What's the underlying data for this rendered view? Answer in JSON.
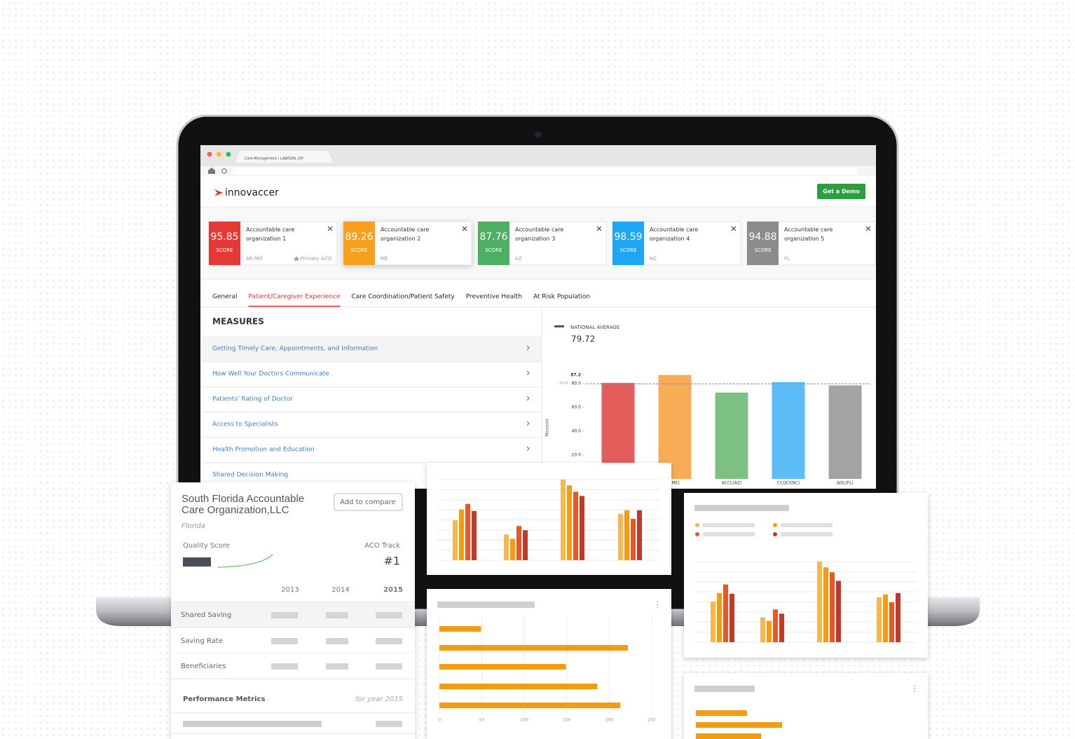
{
  "browser_tab": "Care Management / LAWSON, JOY",
  "header": {
    "logo": "innovaccer",
    "button": "Get a Demo"
  },
  "score_cards": [
    {
      "score": 95.85,
      "score_label": "SCORE",
      "name": "Accountable care organization 1",
      "location": "AR,MO",
      "tag": "Primary ACO",
      "color": "#e53935"
    },
    {
      "score": 89.26,
      "score_label": "SCORE",
      "name": "Accountable care organization 2",
      "location": "ME",
      "color": "#f7a01d"
    },
    {
      "score": 87.76,
      "score_label": "SCORE",
      "name": "Accountable care organization 3",
      "location": "AZ",
      "color": "#4caf62"
    },
    {
      "score": 98.59,
      "score_label": "SCORE",
      "name": "Accountable care organization 4",
      "location": "NC",
      "color": "#1ea7f5"
    },
    {
      "score": 94.88,
      "score_label": "SCORE",
      "name": "Accountable care organization 5",
      "location": "FL",
      "color": "#8c8c8c"
    }
  ],
  "tabs": {
    "items": [
      "General",
      "Patient/Caregiver Experience",
      "Care Coordination/Patient Safety",
      "Preventive Health",
      "At Risk Population"
    ],
    "active": 1
  },
  "measures": {
    "title": "MEASURES",
    "items": [
      "Getting Timely Care, Appointments, and Information",
      "How Well Your Doctors Communicate",
      "Patients' Rating of Doctor",
      "Access to Specialists",
      "Health Promotion and Education",
      "Shared Decision Making"
    ]
  },
  "chart_data": [
    {
      "type": "bar",
      "legend_label": "NATIONAL AVERAGE",
      "national_average": 79.72,
      "y_label": "Measure",
      "categories": [
        null,
        "(ME)",
        "ACCL(AZ)",
        "CCQCI(NC)",
        "AOL(FL)"
      ],
      "values": [
        80.5,
        87.2,
        72.4,
        81.2,
        78.4
      ],
      "colors": [
        "#e35d5b",
        "#f6ad55",
        "#7dc083",
        "#5bbcf7",
        "#a3a3a3"
      ],
      "ylim": [
        0,
        90
      ],
      "yticks": [
        {
          "value": 20,
          "label": "20.0"
        },
        {
          "value": 40,
          "label": "40.0"
        },
        {
          "value": 60,
          "label": "60.0"
        },
        {
          "value": 80,
          "label": "80.0"
        },
        87.2
      ]
    },
    {
      "type": "grouped_bar",
      "grid": true,
      "series": [
        {
          "color": "#f7b84b",
          "values": [
            56,
            36,
            113,
            65
          ]
        },
        {
          "color": "#f39c12",
          "values": [
            71,
            30,
            105,
            70
          ]
        },
        {
          "color": "#e8572a",
          "values": [
            79,
            48,
            96,
            58
          ]
        },
        {
          "color": "#c0392b",
          "values": [
            69,
            42,
            90,
            70
          ]
        }
      ]
    },
    {
      "type": "grouped_bar",
      "grid": true,
      "series": [
        {
          "color": "#f7b84b",
          "values": [
            57,
            35,
            113,
            63
          ]
        },
        {
          "color": "#f39c12",
          "values": [
            69,
            30,
            105,
            67
          ]
        },
        {
          "color": "#e8572a",
          "values": [
            81,
            46,
            98,
            56
          ]
        },
        {
          "color": "#c0392b",
          "values": [
            68,
            40,
            86,
            69
          ]
        }
      ]
    },
    {
      "type": "hbar",
      "color": "#f39c12",
      "values": [
        49,
        222,
        149,
        186,
        213
      ],
      "xlim": [
        0,
        250
      ],
      "xticks": [
        0,
        50,
        100,
        150,
        200,
        250
      ]
    },
    {
      "type": "hbar",
      "color": "#f39c12",
      "values": [
        73,
        123,
        93
      ]
    }
  ],
  "profile_card": {
    "title": "South Florida Accountable Care Organization,LLC",
    "state": "Florida",
    "button": "Add to compare",
    "quality_label": "Quality Score",
    "track_label": "ACO Track",
    "track_rank": "#1",
    "years": [
      "2013",
      "2014",
      "2015"
    ],
    "rows": [
      "Shared Saving",
      "Saving Rate",
      "Beneficiaries"
    ],
    "section": "Performance Metrics",
    "section_note": "for year 2015"
  }
}
